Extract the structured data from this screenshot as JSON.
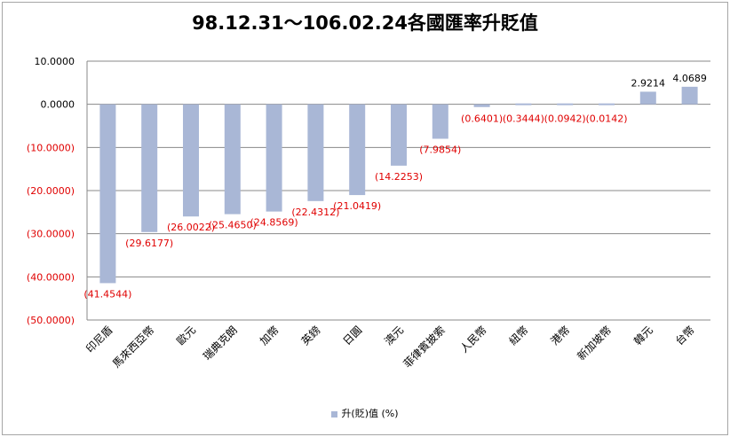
{
  "chart_data": {
    "type": "bar",
    "title": "98.12.31～106.02.24各國匯率升貶值",
    "categories": [
      "印尼盾",
      "馬來西亞幣",
      "歐元",
      "瑞典克朗",
      "加幣",
      "英鎊",
      "日圓",
      "澳元",
      "菲律賓披索",
      "人民幣",
      "紐幣",
      "港幣",
      "新加坡幣",
      "韓元",
      "台幣"
    ],
    "series": [
      {
        "name": "升(貶)值 (%)",
        "values": [
          -41.4544,
          -29.6177,
          -26.0022,
          -25.465,
          -24.8569,
          -22.4312,
          -21.0419,
          -14.2253,
          -7.9854,
          -0.6401,
          -0.3444,
          -0.0942,
          -0.0142,
          2.9214,
          4.0689
        ],
        "labels": [
          "(41.4544)",
          "(29.6177)",
          "(26.0022)",
          "(25.4650)",
          "(24.8569)",
          "(22.4312)",
          "(21.0419)",
          "(14.2253)",
          "(7.9854)",
          "(0.6401)",
          "(0.3444)",
          "(0.0942)",
          "(0.0142)",
          "2.9214",
          "4.0689"
        ]
      }
    ],
    "yticks": [
      10,
      0,
      -10,
      -20,
      -30,
      -40,
      -50
    ],
    "ytick_labels": [
      "10.0000",
      "0.0000",
      "(10.0000)",
      "(20.0000)",
      "(30.0000)",
      "(40.0000)",
      "(50.0000)"
    ],
    "ylim": [
      -50,
      10
    ],
    "grid": true,
    "legend_position": "bottom",
    "colors": {
      "bar": "#a9b7d6",
      "negative_text": "#e00000",
      "positive_text": "#000000",
      "grid": "#888888"
    }
  }
}
